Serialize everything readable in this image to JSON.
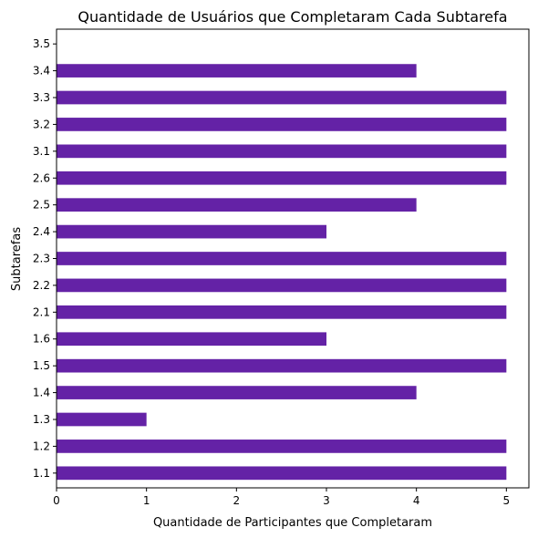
{
  "chart_data": {
    "type": "bar",
    "orientation": "horizontal",
    "title": "Quantidade de Usuários que Completaram Cada Subtarefa",
    "xlabel": "Quantidade de Participantes que Completaram",
    "ylabel": "Subtarefas",
    "categories": [
      "1.1",
      "1.2",
      "1.3",
      "1.4",
      "1.5",
      "1.6",
      "2.1",
      "2.2",
      "2.3",
      "2.4",
      "2.5",
      "2.6",
      "3.1",
      "3.2",
      "3.3",
      "3.4",
      "3.5"
    ],
    "values": [
      5,
      5,
      1,
      4,
      5,
      3,
      5,
      5,
      5,
      3,
      4,
      5,
      5,
      5,
      5,
      4,
      0
    ],
    "xlim": [
      0,
      5.25
    ],
    "xticks": [
      0,
      1,
      2,
      3,
      4,
      5
    ],
    "grid": false,
    "legend": "none",
    "colors": {
      "bar": "#6422a6"
    }
  }
}
